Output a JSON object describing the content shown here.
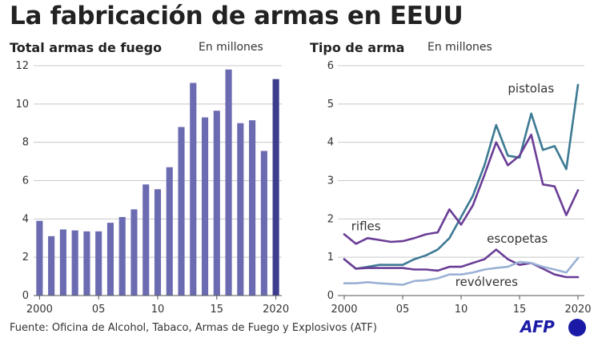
{
  "title": "La fabricación de armas en EEUU",
  "source": "Fuente: Oficina de Alcohol, Tabaco, Armas de Fuego y Explosivos (ATF)",
  "logo": "AFP",
  "colors": {
    "bar": "#6b6bb2",
    "bar_last": "#3d3d8f",
    "pistolas": "#3d7a93",
    "rifles": "#6a3d96",
    "escopetas": "#6a3d96",
    "revolveres": "#9ab1d6",
    "grid": "#c8c8c8",
    "logo": "#1a1aa6"
  },
  "chart_data": [
    {
      "type": "bar",
      "title": "Total armas de fuego",
      "subtitle": "En millones",
      "x": [
        2000,
        2001,
        2002,
        2003,
        2004,
        2005,
        2006,
        2007,
        2008,
        2009,
        2010,
        2011,
        2012,
        2013,
        2014,
        2015,
        2016,
        2017,
        2018,
        2019,
        2020
      ],
      "values": [
        3.9,
        3.1,
        3.45,
        3.4,
        3.35,
        3.35,
        3.8,
        4.1,
        4.5,
        5.8,
        5.55,
        6.7,
        8.8,
        11.1,
        9.3,
        9.65,
        11.8,
        9.0,
        9.15,
        7.55,
        11.3
      ],
      "ylim": [
        0,
        12
      ],
      "yticks": [
        0,
        2,
        4,
        6,
        8,
        10,
        12
      ],
      "xtick_labels": [
        "2000",
        "05",
        "10",
        "15",
        "2020"
      ],
      "xtick_values": [
        2000,
        2005,
        2010,
        2015,
        2020
      ],
      "grid": true
    },
    {
      "type": "line",
      "title": "Tipo de arma",
      "subtitle": "En millones",
      "x": [
        2000,
        2001,
        2002,
        2003,
        2004,
        2005,
        2006,
        2007,
        2008,
        2009,
        2010,
        2011,
        2012,
        2013,
        2014,
        2015,
        2016,
        2017,
        2018,
        2019,
        2020
      ],
      "series": [
        {
          "name": "pistolas",
          "color_key": "pistolas",
          "values": [
            0.95,
            0.7,
            0.75,
            0.8,
            0.8,
            0.8,
            0.95,
            1.05,
            1.2,
            1.5,
            2.05,
            2.6,
            3.4,
            4.45,
            3.65,
            3.6,
            4.75,
            3.8,
            3.9,
            3.3,
            5.5
          ]
        },
        {
          "name": "rifles",
          "color_key": "rifles",
          "values": [
            1.6,
            1.35,
            1.5,
            1.45,
            1.4,
            1.42,
            1.5,
            1.6,
            1.65,
            2.25,
            1.85,
            2.35,
            3.15,
            4.0,
            3.4,
            3.65,
            4.2,
            2.9,
            2.85,
            2.1,
            2.75
          ]
        },
        {
          "name": "escopetas",
          "color_key": "escopetas",
          "values": [
            0.95,
            0.7,
            0.72,
            0.72,
            0.72,
            0.72,
            0.68,
            0.68,
            0.65,
            0.75,
            0.75,
            0.85,
            0.95,
            1.2,
            0.95,
            0.8,
            0.85,
            0.7,
            0.55,
            0.48,
            0.48
          ]
        },
        {
          "name": "revólveres",
          "color_key": "revolveres",
          "values": [
            0.32,
            0.32,
            0.35,
            0.32,
            0.3,
            0.28,
            0.38,
            0.4,
            0.45,
            0.55,
            0.55,
            0.6,
            0.68,
            0.72,
            0.75,
            0.88,
            0.85,
            0.75,
            0.68,
            0.6,
            0.98
          ]
        }
      ],
      "ylim": [
        0,
        6
      ],
      "yticks": [
        0,
        1,
        2,
        3,
        4,
        5,
        6
      ],
      "xtick_labels": [
        "2000",
        "05",
        "10",
        "15",
        "2020"
      ],
      "xtick_values": [
        2000,
        2005,
        2010,
        2015,
        2020
      ],
      "grid": true
    }
  ]
}
